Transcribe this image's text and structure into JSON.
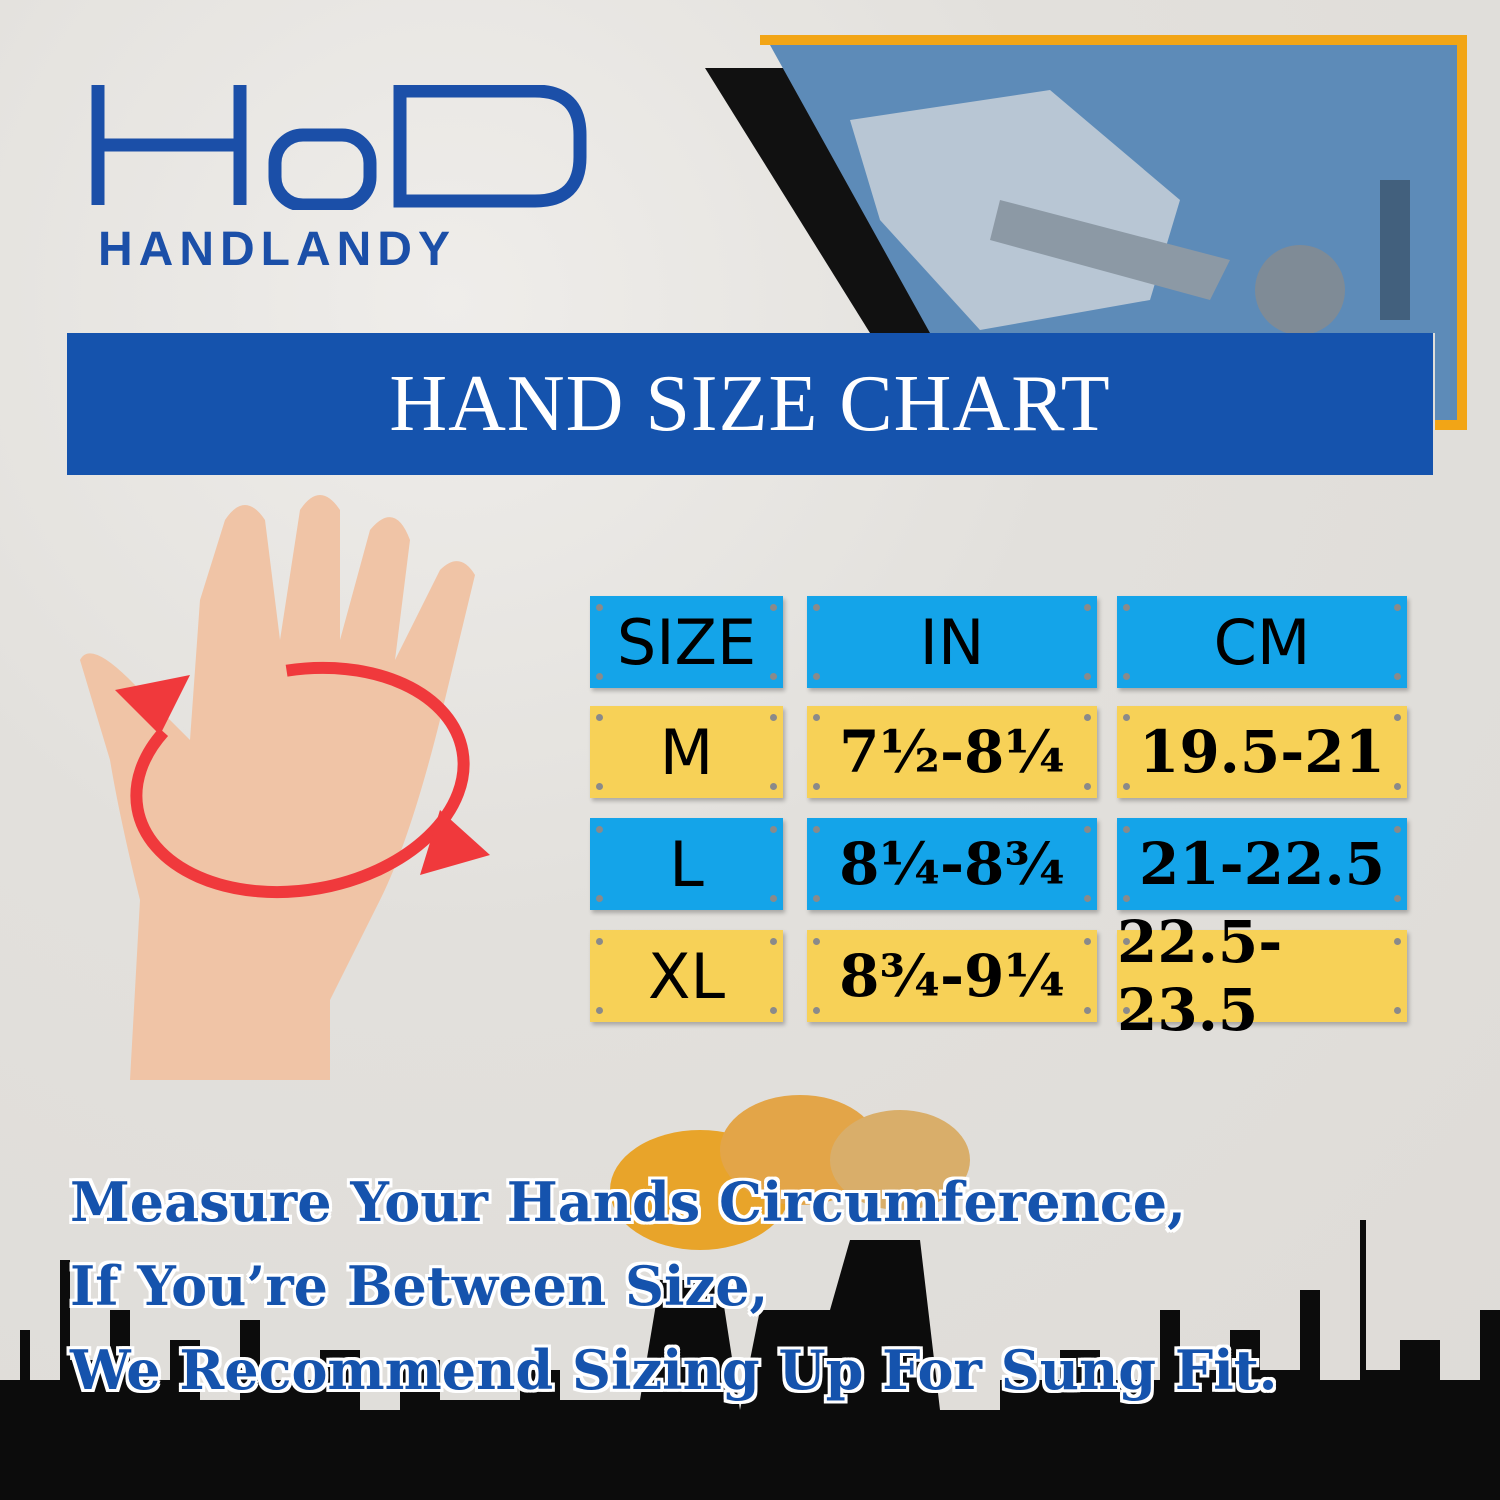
{
  "brand": {
    "name": "HANDLANDY",
    "logo_text": "HOD",
    "color": "#1b4fa8"
  },
  "title": "HAND SIZE CHART",
  "colors": {
    "banner": "#1553ad",
    "header_cell": "#14a4e9",
    "alt_cell": "#f7d157",
    "accent": "#f2a516",
    "arrow": "#f0393c"
  },
  "table": {
    "headers": [
      "SIZE",
      "IN",
      "CM"
    ],
    "rows": [
      {
        "size": "M",
        "in": "7½-8¼",
        "cm": "19.5-21",
        "color": "yellow"
      },
      {
        "size": "L",
        "in": "8¼-8¾",
        "cm": "21-22.5",
        "color": "blue"
      },
      {
        "size": "XL",
        "in": "8¾-9¼",
        "cm": "22.5-23.5",
        "color": "yellow"
      }
    ]
  },
  "message": [
    "Measure Your  Hands Circumference,",
    "If You’re Between Size,",
    "We Recommend Sizing Up For Sung Fit."
  ]
}
